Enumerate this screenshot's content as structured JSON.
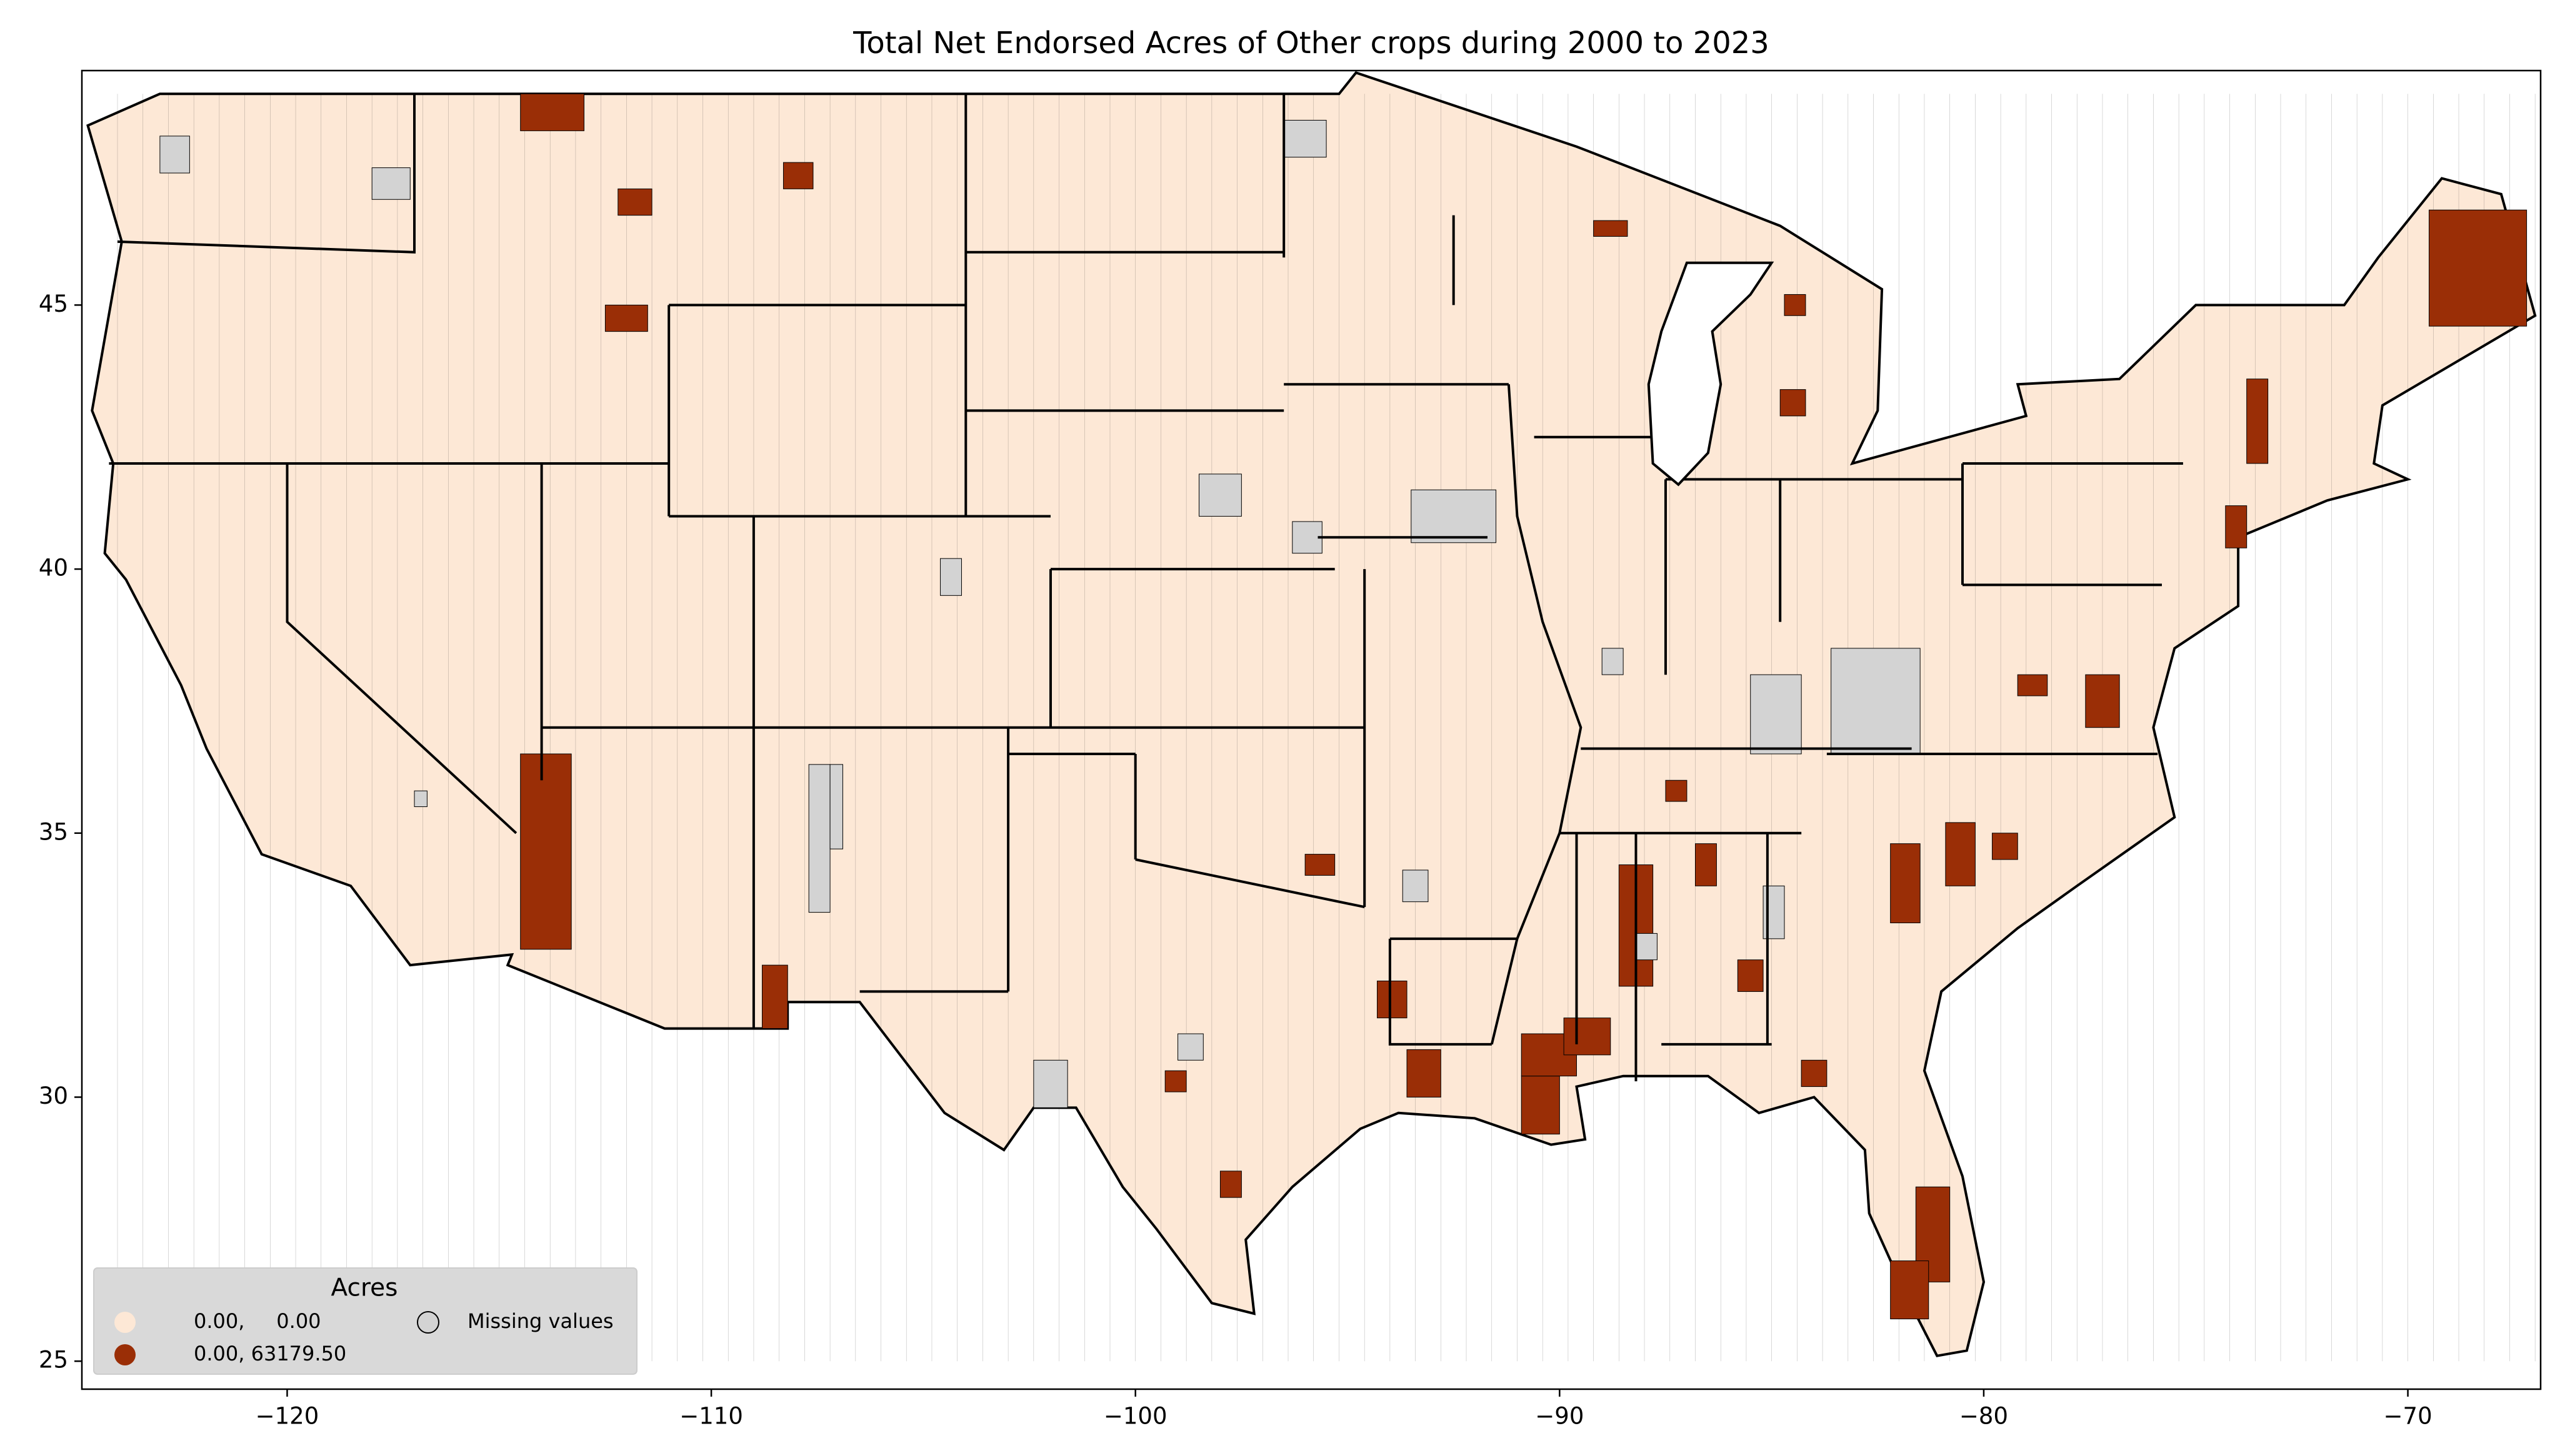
{
  "chart_data": {
    "type": "choropleth",
    "title": "Total Net Endorsed Acres of Other crops during 2000 to 2023",
    "xlim": [
      -124.84,
      -66.87
    ],
    "ylim": [
      24.47,
      49.44
    ],
    "xticks": [
      {
        "value": -120,
        "label": "−120"
      },
      {
        "value": -110,
        "label": "−110"
      },
      {
        "value": -100,
        "label": "−100"
      },
      {
        "value": -90,
        "label": "−90"
      },
      {
        "value": -80,
        "label": "−80"
      },
      {
        "value": -70,
        "label": "−70"
      }
    ],
    "yticks": [
      25,
      30,
      35,
      40,
      45
    ],
    "legend": {
      "title": "Acres",
      "corner": "lower left",
      "items": [
        {
          "label": "0.00,     0.00",
          "color": "#fde8d6"
        },
        {
          "label": "0.00, 63179.50",
          "color": "#9a2e06"
        },
        {
          "label": "Missing values",
          "color": "#d3d3d3"
        }
      ]
    }
  }
}
